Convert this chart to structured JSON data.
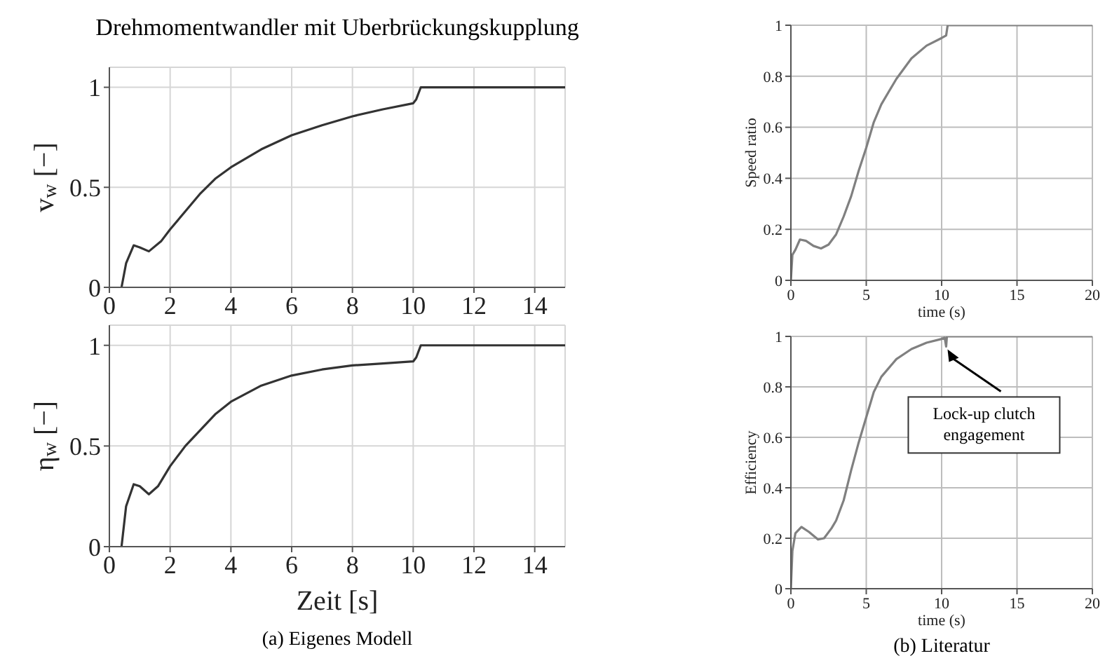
{
  "chart_data": [
    {
      "type": "line",
      "title": "Drehmomentwandler mit Uberbrückungskupplung",
      "ylabel": "v$_{w}$ [−]",
      "x": [
        0.4,
        0.55,
        0.8,
        1.0,
        1.3,
        1.7,
        2,
        2.5,
        3,
        3.5,
        4,
        5,
        6,
        7,
        8,
        9,
        10,
        10.1,
        10.25,
        15
      ],
      "series": [
        {
          "color": "#333333",
          "values": [
            0,
            0.12,
            0.21,
            0.2,
            0.18,
            0.23,
            0.29,
            0.38,
            0.47,
            0.545,
            0.6,
            0.69,
            0.76,
            0.81,
            0.855,
            0.89,
            0.92,
            0.94,
            1.0,
            1.0
          ]
        }
      ],
      "xlim": [
        0,
        15
      ],
      "xticks": [
        0,
        2,
        4,
        6,
        8,
        10,
        12,
        14
      ],
      "ylim": [
        0,
        1.1
      ],
      "yticks": [
        0,
        0.5,
        1
      ],
      "grid": true
    },
    {
      "type": "line",
      "ylabel": "η$_{w}$ [−]",
      "xlabel": "Zeit [s]",
      "x": [
        0.4,
        0.55,
        0.8,
        1.0,
        1.3,
        1.6,
        2,
        2.5,
        3,
        3.5,
        4,
        5,
        6,
        7,
        8,
        9,
        10,
        10.1,
        10.25,
        15
      ],
      "series": [
        {
          "color": "#333333",
          "values": [
            0,
            0.2,
            0.31,
            0.3,
            0.26,
            0.3,
            0.4,
            0.5,
            0.58,
            0.66,
            0.72,
            0.8,
            0.85,
            0.88,
            0.9,
            0.91,
            0.92,
            0.94,
            1.0,
            1.0
          ]
        }
      ],
      "xlim": [
        0,
        15
      ],
      "xticks": [
        0,
        2,
        4,
        6,
        8,
        10,
        12,
        14
      ],
      "ylim": [
        0,
        1.1
      ],
      "yticks": [
        0,
        0.5,
        1
      ],
      "grid": true,
      "annotations": [
        "(a) Eigenes Modell"
      ]
    },
    {
      "type": "line",
      "ylabel": "Speed ratio",
      "xlabel": "time (s)",
      "x": [
        0,
        0.1,
        0.3,
        0.6,
        1,
        1.5,
        2,
        2.5,
        3,
        3.5,
        4,
        4.5,
        5,
        5.5,
        6,
        7,
        8,
        9,
        10,
        10.3,
        10.4,
        20
      ],
      "series": [
        {
          "color": "#808080",
          "values": [
            0,
            0.1,
            0.12,
            0.16,
            0.155,
            0.135,
            0.125,
            0.14,
            0.18,
            0.25,
            0.33,
            0.43,
            0.52,
            0.62,
            0.69,
            0.79,
            0.87,
            0.92,
            0.95,
            0.96,
            1.0,
            1.0
          ]
        }
      ],
      "xlim": [
        0,
        20
      ],
      "xticks": [
        0,
        5,
        10,
        15,
        20
      ],
      "ylim": [
        0,
        1
      ],
      "yticks": [
        0,
        0.2,
        0.4,
        0.6,
        0.8,
        1
      ],
      "grid": true
    },
    {
      "type": "line",
      "ylabel": "Efficiency",
      "xlabel": "time (s)",
      "x": [
        0,
        0.1,
        0.3,
        0.7,
        1.2,
        1.8,
        2.2,
        2.7,
        3,
        3.5,
        4,
        4.5,
        5,
        5.5,
        6,
        7,
        8,
        9,
        10,
        10.2,
        10.3,
        10.35,
        20
      ],
      "series": [
        {
          "color": "#808080",
          "values": [
            0,
            0.15,
            0.22,
            0.245,
            0.225,
            0.195,
            0.2,
            0.24,
            0.27,
            0.35,
            0.47,
            0.58,
            0.68,
            0.78,
            0.84,
            0.91,
            0.95,
            0.975,
            0.99,
            0.995,
            0.96,
            1.0,
            1.0
          ]
        }
      ],
      "xlim": [
        0,
        20
      ],
      "xticks": [
        0,
        5,
        10,
        15,
        20
      ],
      "ylim": [
        0,
        1
      ],
      "yticks": [
        0,
        0.2,
        0.4,
        0.6,
        0.8,
        1
      ],
      "grid": true,
      "annotations": [
        {
          "text": "Lock-up clutch engagement",
          "x": 10.3,
          "y": 0.96
        },
        "(b) Literatur"
      ]
    }
  ]
}
